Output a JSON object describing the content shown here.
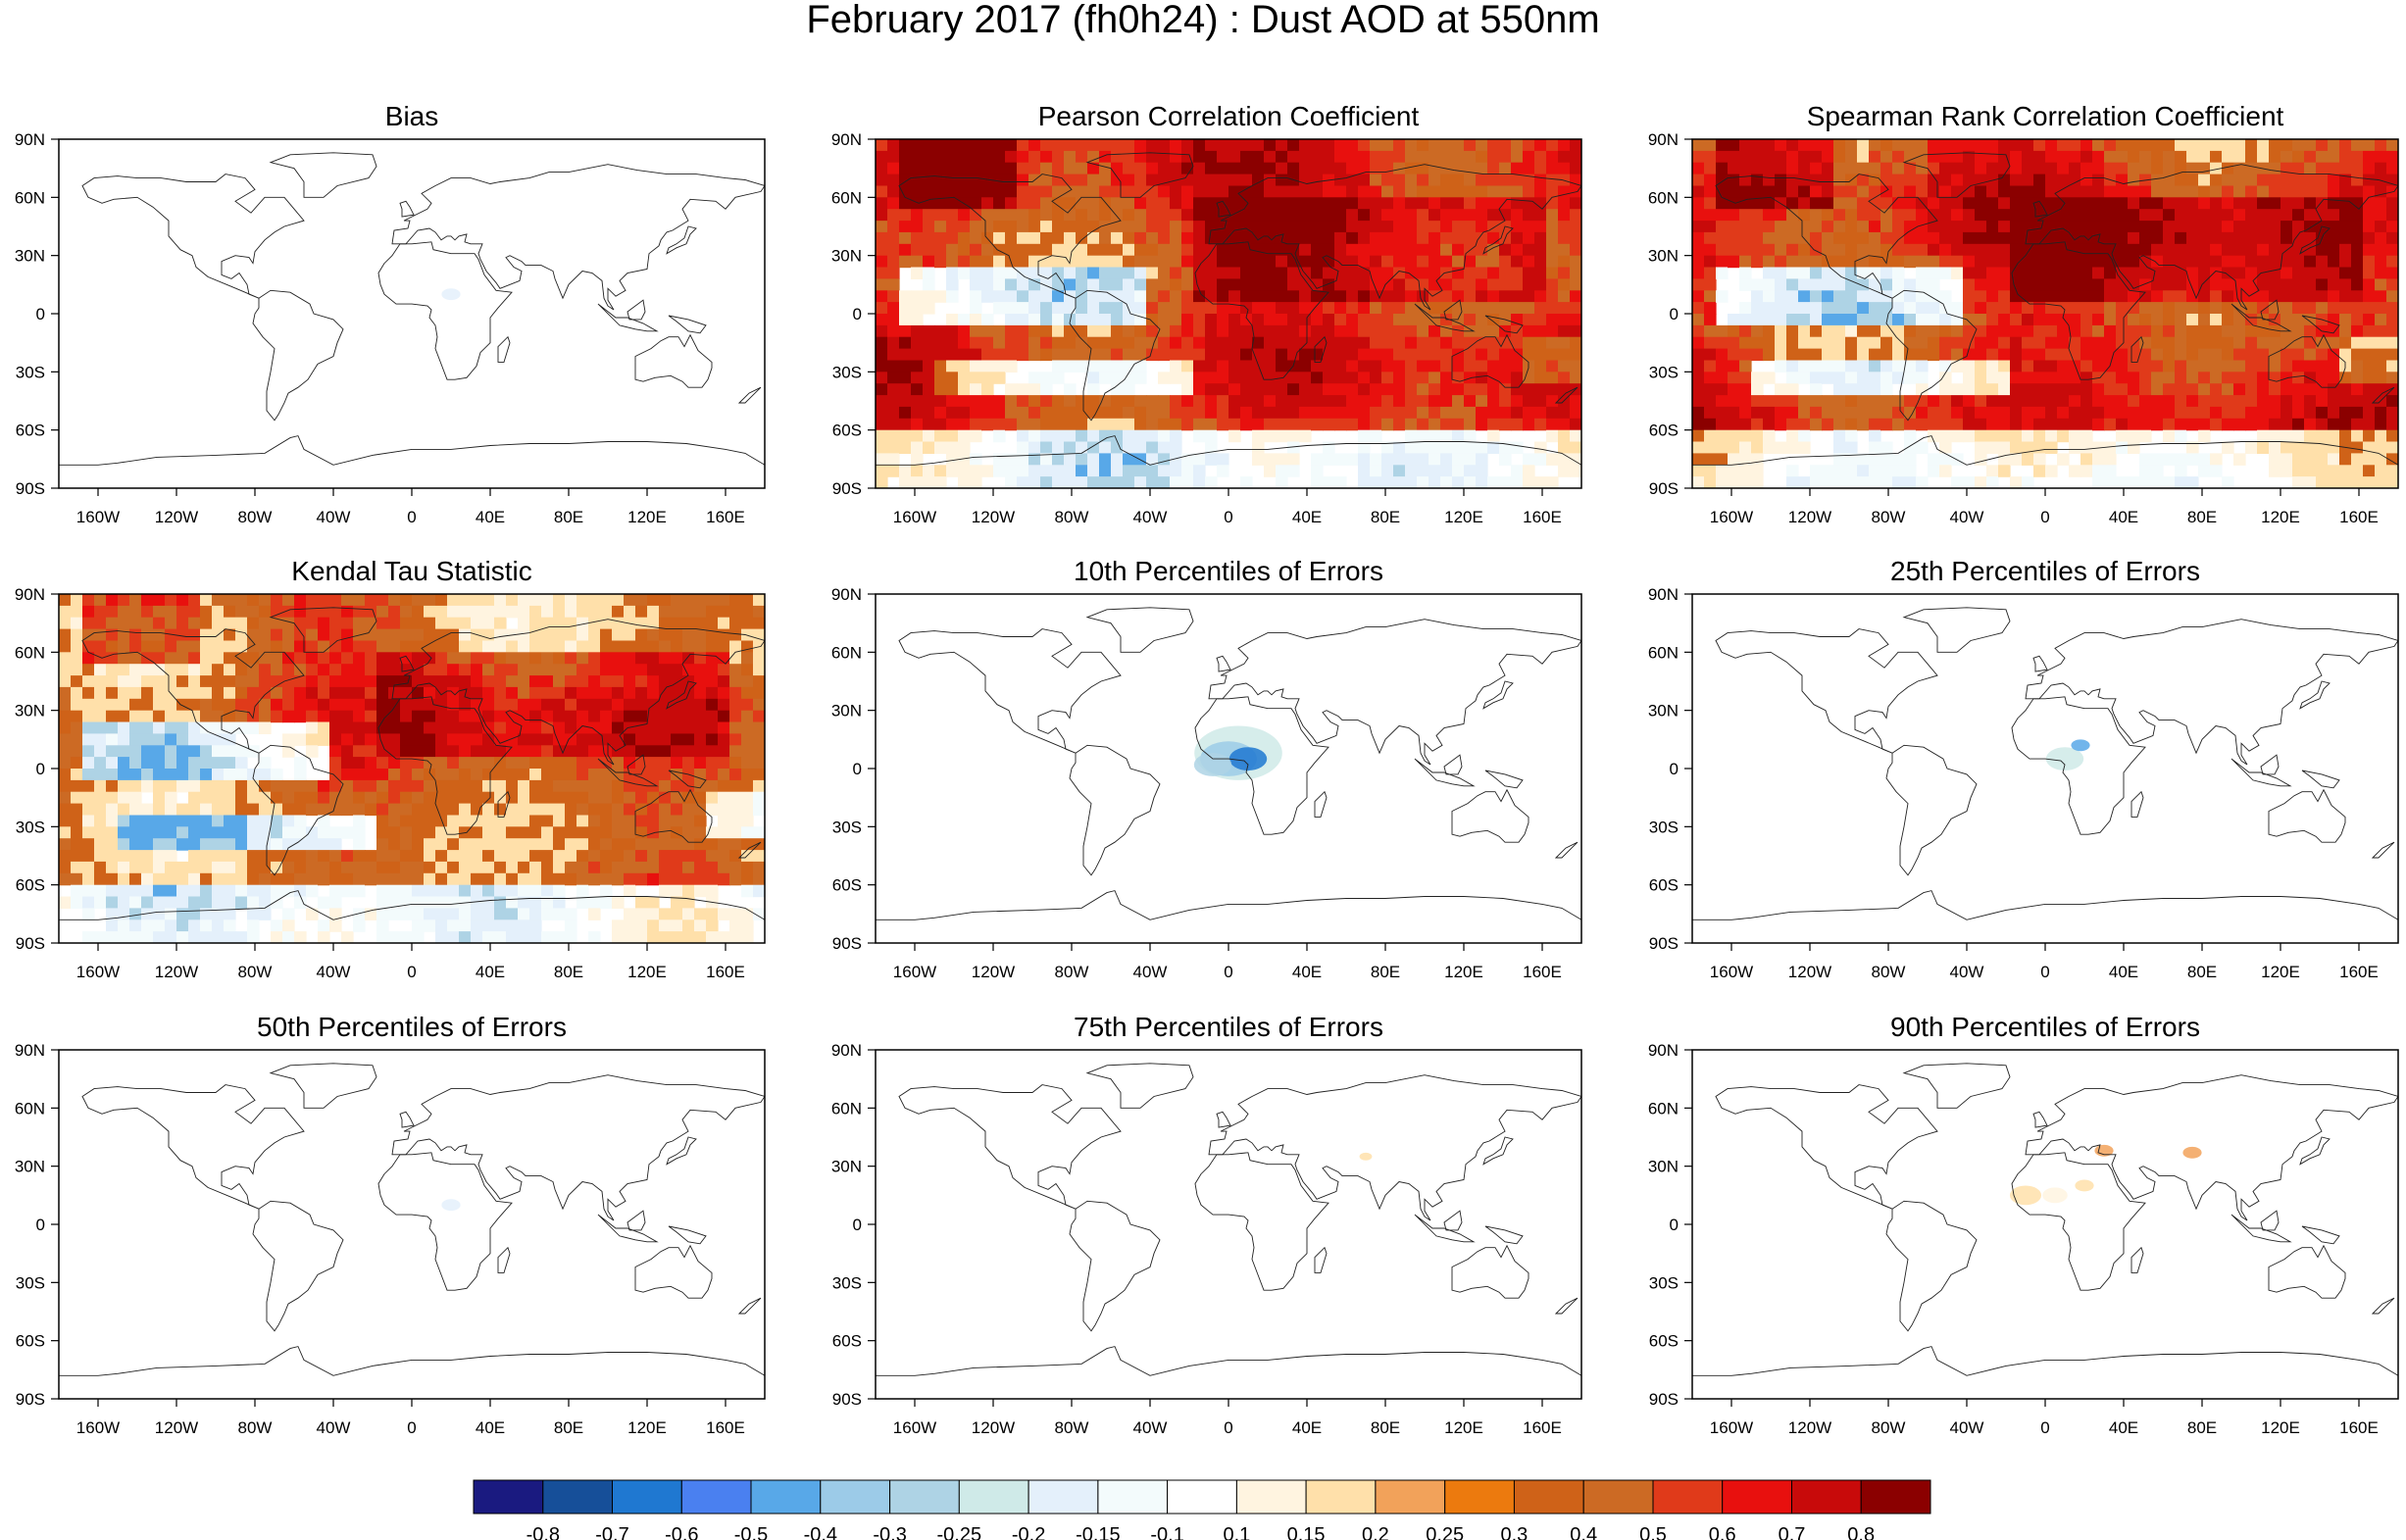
{
  "title": "February 2017 (fh0h24) : Dust AOD at 550nm",
  "lat_labels": [
    "90N",
    "60N",
    "30N",
    "0",
    "30S",
    "60S",
    "90S"
  ],
  "lon_labels": [
    "160W",
    "120W",
    "80W",
    "40W",
    "0",
    "40E",
    "80E",
    "120E",
    "160E"
  ],
  "panels": [
    {
      "title": "Bias",
      "pattern": "sparse"
    },
    {
      "title": "Pearson Correlation Coefficient",
      "pattern": "correlation"
    },
    {
      "title": "Spearman Rank Correlation Coefficient",
      "pattern": "correlation"
    },
    {
      "title": "Kendal Tau Statistic",
      "pattern": "tau"
    },
    {
      "title": "10th Percentiles of Errors",
      "pattern": "p10"
    },
    {
      "title": "25th Percentiles of Errors",
      "pattern": "p25"
    },
    {
      "title": "50th Percentiles of Errors",
      "pattern": "sparse"
    },
    {
      "title": "75th Percentiles of Errors",
      "pattern": "p75"
    },
    {
      "title": "90th Percentiles of Errors",
      "pattern": "p90"
    }
  ],
  "colorbar": {
    "labels": [
      "-0.8",
      "-0.7",
      "-0.6",
      "-0.5",
      "-0.4",
      "-0.3",
      "-0.25",
      "-0.2",
      "-0.15",
      "-0.1",
      "0.1",
      "0.15",
      "0.2",
      "0.25",
      "0.3",
      "0.4",
      "0.5",
      "0.6",
      "0.7",
      "0.8"
    ],
    "colors": [
      "#1a1a80",
      "#164f99",
      "#1f78d1",
      "#4a80f0",
      "#58a8e8",
      "#9ccbe8",
      "#aed3e5",
      "#cfeae8",
      "#e4f0fb",
      "#f3fbfc",
      "#ffffff",
      "#fff4e0",
      "#ffe0aa",
      "#f2a25a",
      "#ec7a0e",
      "#cf6218",
      "#cc6a24",
      "#e03a1a",
      "#e8100e",
      "#c80a0a",
      "#8b0000"
    ]
  }
}
